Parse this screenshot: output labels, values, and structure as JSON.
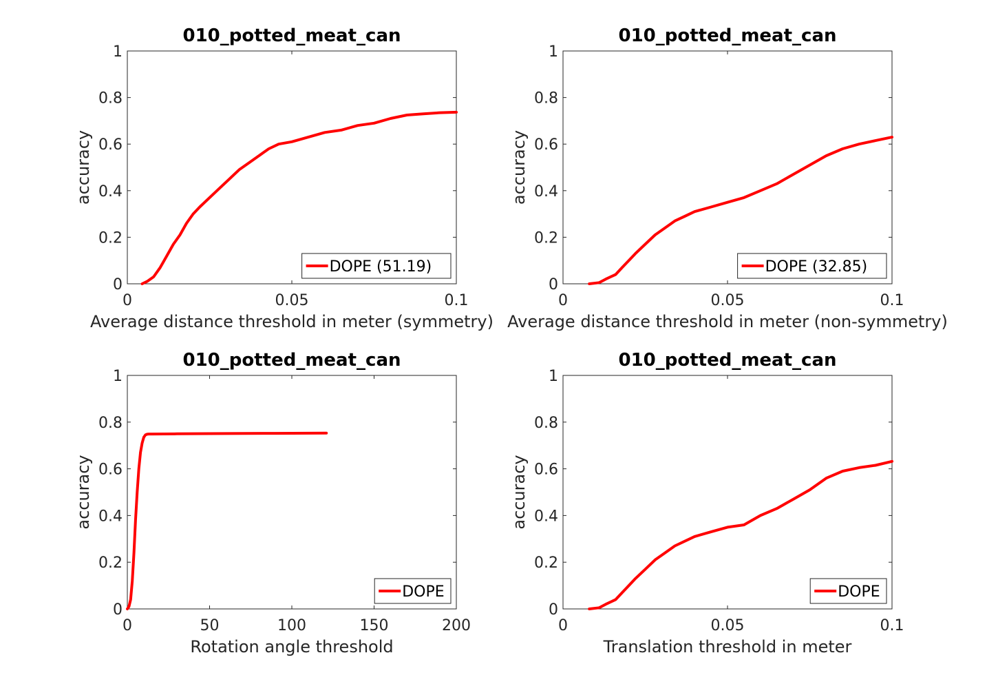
{
  "chart_data": [
    {
      "type": "line",
      "title": "010_potted_meat_can",
      "xlabel": "Average distance threshold in meter (symmetry)",
      "ylabel": "accuracy",
      "xlim": [
        0,
        0.1
      ],
      "ylim": [
        0,
        1
      ],
      "xticks": [
        "0",
        "0.05",
        "0.1"
      ],
      "yticks": [
        "0",
        "0.2",
        "0.4",
        "0.6",
        "0.8",
        "1"
      ],
      "legend_position": "bottom-right",
      "series": [
        {
          "name": "DOPE (51.19)",
          "color": "#ff0000",
          "x": [
            0.0045,
            0.006,
            0.008,
            0.01,
            0.012,
            0.014,
            0.016,
            0.018,
            0.02,
            0.022,
            0.025,
            0.028,
            0.031,
            0.034,
            0.037,
            0.04,
            0.043,
            0.046,
            0.05,
            0.055,
            0.06,
            0.065,
            0.07,
            0.075,
            0.08,
            0.085,
            0.09,
            0.095,
            0.1
          ],
          "y": [
            0.0,
            0.01,
            0.03,
            0.07,
            0.12,
            0.17,
            0.21,
            0.26,
            0.3,
            0.33,
            0.37,
            0.41,
            0.45,
            0.49,
            0.52,
            0.55,
            0.58,
            0.6,
            0.61,
            0.63,
            0.65,
            0.66,
            0.68,
            0.69,
            0.71,
            0.725,
            0.73,
            0.735,
            0.737
          ]
        }
      ]
    },
    {
      "type": "line",
      "title": "010_potted_meat_can",
      "xlabel": "Average distance threshold in meter (non-symmetry)",
      "ylabel": "accuracy",
      "xlim": [
        0,
        0.1
      ],
      "ylim": [
        0,
        1
      ],
      "xticks": [
        "0",
        "0.05",
        "0.1"
      ],
      "yticks": [
        "0",
        "0.2",
        "0.4",
        "0.6",
        "0.8",
        "1"
      ],
      "legend_position": "bottom-right",
      "series": [
        {
          "name": "DOPE (32.85)",
          "color": "#ff0000",
          "x": [
            0.008,
            0.011,
            0.013,
            0.016,
            0.018,
            0.02,
            0.022,
            0.025,
            0.028,
            0.031,
            0.034,
            0.037,
            0.04,
            0.045,
            0.05,
            0.055,
            0.06,
            0.065,
            0.07,
            0.075,
            0.08,
            0.085,
            0.09,
            0.095,
            0.1
          ],
          "y": [
            0.0,
            0.005,
            0.02,
            0.04,
            0.07,
            0.1,
            0.13,
            0.17,
            0.21,
            0.24,
            0.27,
            0.29,
            0.31,
            0.33,
            0.35,
            0.37,
            0.4,
            0.43,
            0.47,
            0.51,
            0.55,
            0.58,
            0.6,
            0.615,
            0.63
          ]
        }
      ]
    },
    {
      "type": "line",
      "title": "010_potted_meat_can",
      "xlabel": "Rotation angle threshold",
      "ylabel": "accuracy",
      "xlim": [
        0,
        200
      ],
      "ylim": [
        0,
        1
      ],
      "xticks": [
        "0",
        "50",
        "100",
        "150",
        "200"
      ],
      "yticks": [
        "0",
        "0.2",
        "0.4",
        "0.6",
        "0.8",
        "1"
      ],
      "legend_position": "bottom-right",
      "series": [
        {
          "name": "DOPE",
          "color": "#ff0000",
          "x": [
            0,
            1,
            2,
            3,
            4,
            5,
            6,
            7,
            8,
            9,
            10,
            11,
            12,
            13,
            15,
            30,
            60,
            90,
            121
          ],
          "y": [
            0.0,
            0.01,
            0.04,
            0.12,
            0.24,
            0.38,
            0.5,
            0.6,
            0.67,
            0.71,
            0.735,
            0.745,
            0.748,
            0.749,
            0.749,
            0.75,
            0.751,
            0.752,
            0.753
          ]
        }
      ]
    },
    {
      "type": "line",
      "title": "010_potted_meat_can",
      "xlabel": "Translation threshold in meter",
      "ylabel": "accuracy",
      "xlim": [
        0,
        0.1
      ],
      "ylim": [
        0,
        1
      ],
      "xticks": [
        "0",
        "0.05",
        "0.1"
      ],
      "yticks": [
        "0",
        "0.2",
        "0.4",
        "0.6",
        "0.8",
        "1"
      ],
      "legend_position": "bottom-right",
      "series": [
        {
          "name": "DOPE",
          "color": "#ff0000",
          "x": [
            0.008,
            0.011,
            0.013,
            0.016,
            0.018,
            0.02,
            0.022,
            0.025,
            0.028,
            0.031,
            0.034,
            0.037,
            0.04,
            0.045,
            0.05,
            0.055,
            0.06,
            0.065,
            0.07,
            0.075,
            0.08,
            0.085,
            0.09,
            0.095,
            0.1
          ],
          "y": [
            0.0,
            0.005,
            0.02,
            0.04,
            0.07,
            0.1,
            0.13,
            0.17,
            0.21,
            0.24,
            0.27,
            0.29,
            0.31,
            0.33,
            0.35,
            0.36,
            0.4,
            0.43,
            0.47,
            0.51,
            0.56,
            0.59,
            0.605,
            0.615,
            0.632
          ]
        }
      ]
    }
  ]
}
